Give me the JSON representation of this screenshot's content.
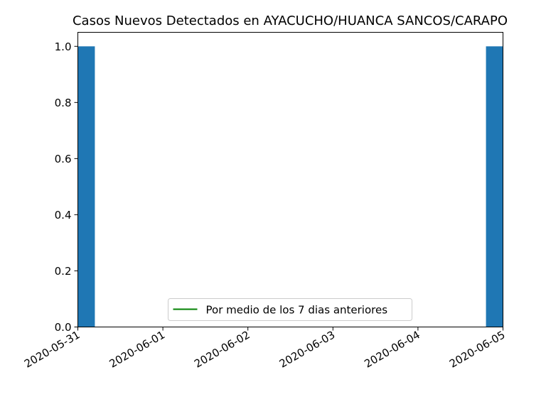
{
  "chart_data": {
    "type": "bar",
    "title": "Casos Nuevos Detectados en AYACUCHO/HUANCA SANCOS/CARAPO",
    "xlabel": "",
    "ylabel": "",
    "x_dates": [
      "2020-05-31",
      "2020-06-01",
      "2020-06-02",
      "2020-06-03",
      "2020-06-04",
      "2020-06-05"
    ],
    "xlim": [
      "2020-05-31",
      "2020-06-05"
    ],
    "ylim": [
      0,
      1.05
    ],
    "y_ticks": [
      "0.0",
      "0.2",
      "0.4",
      "0.6",
      "0.8",
      "1.0"
    ],
    "bars": [
      {
        "date": "2020-05-31",
        "value": 1
      },
      {
        "date": "2020-06-05",
        "value": 1
      }
    ],
    "bar_width_days": 0.4,
    "bar_color": "#1f77b4",
    "series": [
      {
        "name": "Por medio de los 7 dias anteriores",
        "color": "#008000",
        "values": []
      }
    ],
    "legend_position": "lower-center",
    "grid": false
  }
}
